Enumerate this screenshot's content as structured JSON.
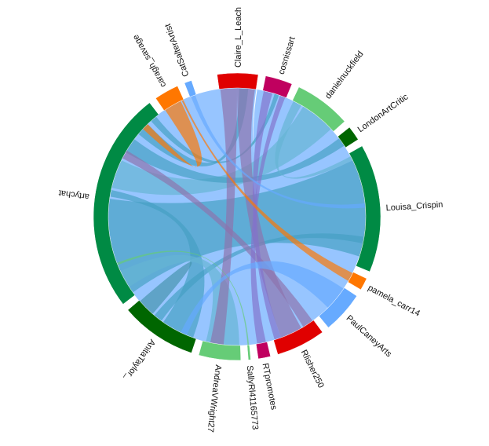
{
  "chart_data": {
    "type": "chord",
    "groups": [
      {
        "name": "Claire_L_Leach",
        "color": "#e00000",
        "start": 352.0,
        "end": 8.5
      },
      {
        "name": "cosnissart",
        "color": "#c0005f",
        "start": 11.5,
        "end": 22.5
      },
      {
        "name": "danielnuckfield",
        "color": "#66cc77",
        "start": 25.5,
        "end": 48.5
      },
      {
        "name": "LondonArtCritic",
        "color": "#006600",
        "start": 51.5,
        "end": 57.5
      },
      {
        "name": "Louisa_Crispin",
        "color": "#008a44",
        "start": 60.5,
        "end": 112.5
      },
      {
        "name": "pamela_carr14",
        "color": "#ff7700",
        "start": 115.5,
        "end": 120.5
      },
      {
        "name": "PaulCaneyArts",
        "color": "#66aaff",
        "start": 123.5,
        "end": 140.5
      },
      {
        "name": "Rlisher250",
        "color": "#e00000",
        "start": 143.5,
        "end": 163.5
      },
      {
        "name": "RTpromotes",
        "color": "#c0005f",
        "start": 166.5,
        "end": 171.5
      },
      {
        "name": "SallyRl41165773",
        "color": "#66cc77",
        "start": 174.5,
        "end": 175.5
      },
      {
        "name": "AndreaVWright27",
        "color": "#66cc77",
        "start": 178.5,
        "end": 195.5
      },
      {
        "name": "AnitaTaylor_",
        "color": "#006600",
        "start": 198.5,
        "end": 229.5
      },
      {
        "name": "artychat",
        "color": "#008a44",
        "start": 232.5,
        "end": 322.5
      },
      {
        "name": "caragh_savage",
        "color": "#ff7700",
        "start": 325.5,
        "end": 335.5
      },
      {
        "name": "CatSalterArtist",
        "color": "#66aaff",
        "start": 338.5,
        "end": 341.5
      }
    ],
    "ribbons": [
      {
        "source": "artychat",
        "s0": 234,
        "s1": 278,
        "target": "Louisa_Crispin",
        "t0": 64,
        "t1": 108,
        "color": "#008a44"
      },
      {
        "source": "artychat",
        "s0": 283,
        "s1": 296,
        "target": "danielnuckfield",
        "t0": 31,
        "t1": 47,
        "color": "#66cc77"
      },
      {
        "source": "artychat",
        "s0": 300,
        "s1": 307,
        "target": "LondonArtCritic",
        "t0": 52.5,
        "t1": 56.5,
        "color": "#008a44"
      },
      {
        "source": "artychat",
        "s0": 310,
        "s1": 316,
        "target": "Claire_L_Leach",
        "t0": 1,
        "t1": 5,
        "color": "#008a44"
      },
      {
        "source": "artychat",
        "s0": 318,
        "s1": 321,
        "target": "cosnissart",
        "t0": 17,
        "t1": 19,
        "color": "#008a44"
      },
      {
        "source": "AnitaTaylor_",
        "s0": 200,
        "s1": 215,
        "target": "artychat",
        "t0": 279,
        "t1": 282,
        "color": "#008a44"
      },
      {
        "source": "AnitaTaylor_",
        "s0": 216,
        "s1": 220,
        "target": "Louisa_Crispin",
        "t0": 99,
        "t1": 102,
        "color": "#008a44"
      },
      {
        "source": "AnitaTaylor_",
        "s0": 221,
        "s1": 228,
        "target": "AnitaTaylor_",
        "t0": 228,
        "t1": 229,
        "color": "#006600"
      },
      {
        "source": "AndreaVWright27",
        "s0": 179,
        "s1": 194,
        "target": "artychat",
        "t0": 237,
        "t1": 245,
        "color": "#66cc77"
      },
      {
        "source": "Claire_L_Leach",
        "s0": 352.5,
        "s1": 360,
        "target": "AndreaVWright27",
        "t0": 186,
        "t1": 192,
        "color": "#e00000"
      },
      {
        "source": "Claire_L_Leach",
        "s0": 0,
        "s1": 8,
        "target": "Rlisher250",
        "t0": 150,
        "t1": 160,
        "color": "#e00000"
      },
      {
        "source": "Rlisher250",
        "s0": 144,
        "s1": 149,
        "target": "artychat",
        "t0": 297,
        "t1": 301,
        "color": "#e00000"
      },
      {
        "source": "danielnuckfield",
        "s0": 26,
        "s1": 30,
        "target": "Louisa_Crispin",
        "t0": 62,
        "t1": 64,
        "color": "#66cc77"
      },
      {
        "source": "cosnissart",
        "s0": 12,
        "s1": 16,
        "target": "Rlisher250",
        "t0": 160,
        "t1": 163,
        "color": "#c0005f"
      },
      {
        "source": "cosnissart",
        "s0": 19.5,
        "s1": 22,
        "target": "RTpromotes",
        "t0": 167,
        "t1": 171,
        "color": "#c0005f"
      },
      {
        "source": "PaulCaneyArts",
        "s0": 124,
        "s1": 135,
        "target": "AnitaTaylor_",
        "t0": 203,
        "t1": 206,
        "color": "#66aaff"
      },
      {
        "source": "PaulCaneyArts",
        "s0": 136,
        "s1": 140,
        "target": "Claire_L_Leach",
        "t0": 9,
        "t1": 8.6,
        "color": "#66aaff"
      },
      {
        "source": "caragh_savage",
        "s0": 326,
        "s1": 334,
        "target": "artychat",
        "t0": 313,
        "t1": 316,
        "color": "#ff7700"
      },
      {
        "source": "caragh_savage",
        "s0": 334.5,
        "s1": 335.3,
        "target": "pamela_carr14",
        "t0": 116,
        "t1": 120,
        "color": "#ff7700"
      },
      {
        "source": "CatSalterArtist",
        "s0": 339,
        "s1": 341,
        "target": "Louisa_Crispin",
        "t0": 84,
        "t1": 86,
        "color": "#66aaff"
      },
      {
        "source": "SallyRl41165773",
        "s0": 174.7,
        "s1": 175.3,
        "target": "artychat",
        "t0": 248,
        "t1": 249,
        "color": "#66cc77"
      }
    ]
  }
}
